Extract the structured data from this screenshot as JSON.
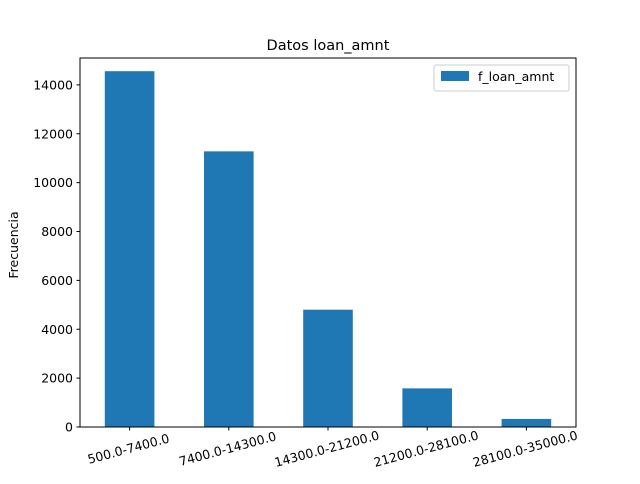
{
  "chart_data": {
    "type": "bar",
    "title": "Datos loan_amnt",
    "xlabel": "",
    "ylabel": "Frecuencia",
    "categories": [
      "500.0-7400.0",
      "7400.0-14300.0",
      "14300.0-21200.0",
      "21200.0-28100.0",
      "28100.0-35000.0"
    ],
    "series": [
      {
        "name": "f_loan_amnt",
        "values": [
          14560,
          11280,
          4800,
          1580,
          330
        ],
        "color": "#1f77b4"
      }
    ],
    "ylim": [
      0,
      15100
    ],
    "yticks": [
      0,
      2000,
      4000,
      6000,
      8000,
      10000,
      12000,
      14000
    ],
    "ytick_labels": [
      "0",
      "2000",
      "4000",
      "6000",
      "8000",
      "10000",
      "12000",
      "14000"
    ],
    "grid": false,
    "legend": "top-right"
  }
}
